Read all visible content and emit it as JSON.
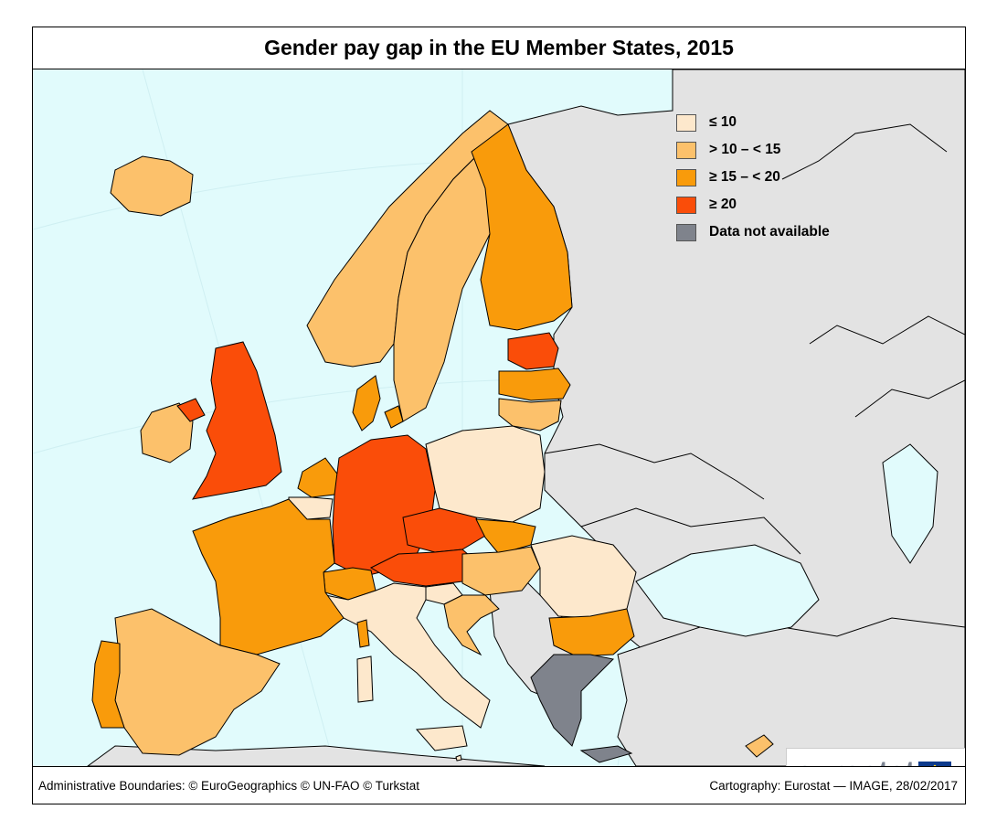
{
  "title": "Gender pay gap in the EU Member States, 2015",
  "legend": [
    {
      "label": "≤ 10",
      "color": "#fde8cc"
    },
    {
      "label": "> 10 – < 15",
      "color": "#fcc16b"
    },
    {
      "label": "≥ 15 – < 20",
      "color": "#f99b0b"
    },
    {
      "label": "≥ 20",
      "color": "#fa4d09"
    },
    {
      "label": "Data not available",
      "color": "#7f838c"
    }
  ],
  "colors": {
    "sea": "#e1fbfc",
    "non_eu_land": "#e3e3e3"
  },
  "countries": [
    {
      "name": "Iceland",
      "class": "> 10 – < 15"
    },
    {
      "name": "Norway",
      "class": "> 10 – < 15"
    },
    {
      "name": "Sweden",
      "class": "> 10 – < 15"
    },
    {
      "name": "Finland",
      "class": "≥ 15 – < 20"
    },
    {
      "name": "Estonia",
      "class": "≥ 20"
    },
    {
      "name": "Latvia",
      "class": "≥ 15 – < 20"
    },
    {
      "name": "Lithuania",
      "class": "> 10 – < 15"
    },
    {
      "name": "Denmark",
      "class": "≥ 15 – < 20"
    },
    {
      "name": "Ireland",
      "class": "> 10 – < 15"
    },
    {
      "name": "United Kingdom",
      "class": "≥ 20"
    },
    {
      "name": "Netherlands",
      "class": "≥ 15 – < 20"
    },
    {
      "name": "Belgium",
      "class": "≤ 10"
    },
    {
      "name": "Luxembourg",
      "class": "≤ 10"
    },
    {
      "name": "Germany",
      "class": "≥ 20"
    },
    {
      "name": "Poland",
      "class": "≤ 10"
    },
    {
      "name": "Czech Republic",
      "class": "≥ 20"
    },
    {
      "name": "Slovakia",
      "class": "≥ 15 – < 20"
    },
    {
      "name": "Austria",
      "class": "≥ 20"
    },
    {
      "name": "Switzerland",
      "class": "≥ 15 – < 20"
    },
    {
      "name": "Hungary",
      "class": "> 10 – < 15"
    },
    {
      "name": "Romania",
      "class": "≤ 10"
    },
    {
      "name": "Bulgaria",
      "class": "≥ 15 – < 20"
    },
    {
      "name": "Slovenia",
      "class": "≤ 10"
    },
    {
      "name": "Croatia",
      "class": "> 10 – < 15"
    },
    {
      "name": "Italy",
      "class": "≤ 10"
    },
    {
      "name": "France",
      "class": "≥ 15 – < 20"
    },
    {
      "name": "Spain",
      "class": "> 10 – < 15"
    },
    {
      "name": "Portugal",
      "class": "≥ 15 – < 20"
    },
    {
      "name": "Greece",
      "class": "Data not available"
    },
    {
      "name": "Cyprus",
      "class": "> 10 – < 15"
    },
    {
      "name": "Malta",
      "class": "≤ 10"
    }
  ],
  "footer": {
    "left": "Administrative Boundaries: © EuroGeographics © UN-FAO © Turkstat",
    "right": "Cartography: Eurostat — IMAGE, 28/02/2017"
  },
  "logo": {
    "text": "eurostat",
    "icon": "eu-flag-icon"
  }
}
